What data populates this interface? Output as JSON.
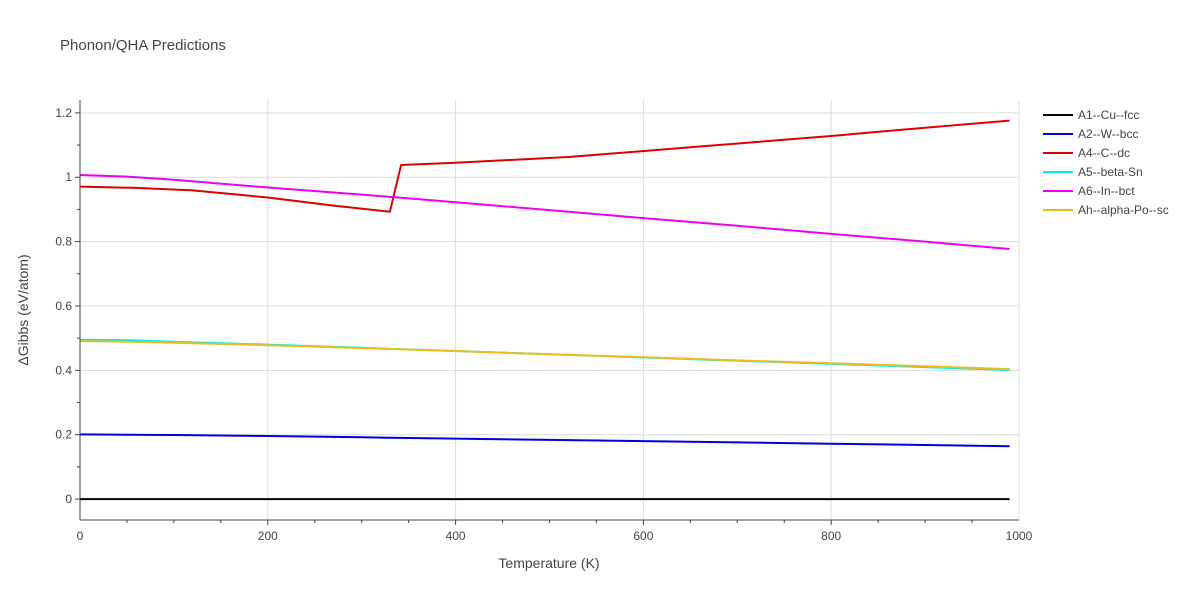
{
  "chart_data": {
    "type": "line",
    "title": "Phonon/QHA Predictions",
    "xlabel": "Temperature (K)",
    "ylabel": "ΔGibbs (eV/atom)",
    "xlim": [
      0,
      1000
    ],
    "ylim": [
      -0.065,
      1.24
    ],
    "xticks": [
      0,
      200,
      400,
      600,
      800,
      1000
    ],
    "xtick_labels": [
      "0",
      "200",
      "400",
      "600",
      "800",
      "1000"
    ],
    "yticks": [
      0,
      0.2,
      0.4,
      0.6,
      0.8,
      1,
      1.2
    ],
    "ytick_labels": [
      "0",
      "0.2",
      "0.4",
      "0.6",
      "0.8",
      "1",
      "1.2"
    ],
    "grid": true,
    "legend_position": "top-right",
    "series": [
      {
        "name": "A1--Cu--fcc",
        "color": "#000000",
        "x": [
          0,
          990
        ],
        "y": [
          0,
          0
        ]
      },
      {
        "name": "A2--W--bcc",
        "color": "#0000dd",
        "x": [
          0,
          100,
          200,
          300,
          400,
          500,
          600,
          700,
          800,
          900,
          990
        ],
        "y": [
          0.201,
          0.199,
          0.196,
          0.192,
          0.188,
          0.184,
          0.18,
          0.176,
          0.172,
          0.168,
          0.164
        ]
      },
      {
        "name": "A4--C--dc",
        "color": "#dd0000",
        "x": [
          0,
          60,
          120,
          200,
          270,
          330,
          342,
          400,
          520,
          650,
          800,
          900,
          990
        ],
        "y": [
          0.971,
          0.967,
          0.959,
          0.937,
          0.912,
          0.893,
          1.038,
          1.045,
          1.063,
          1.093,
          1.128,
          1.154,
          1.176
        ]
      },
      {
        "name": "A5--beta-Sn",
        "color": "#00eeee",
        "x": [
          0,
          50,
          100,
          200,
          300,
          400,
          500,
          600,
          700,
          800,
          900,
          990
        ],
        "y": [
          0.495,
          0.494,
          0.489,
          0.48,
          0.47,
          0.46,
          0.45,
          0.44,
          0.43,
          0.42,
          0.41,
          0.401
        ]
      },
      {
        "name": "A6--In--bct",
        "color": "#ee00ee",
        "x": [
          0,
          50,
          100,
          200,
          300,
          400,
          500,
          600,
          700,
          800,
          900,
          990
        ],
        "y": [
          1.007,
          1.002,
          0.992,
          0.968,
          0.946,
          0.922,
          0.898,
          0.873,
          0.849,
          0.824,
          0.8,
          0.777
        ]
      },
      {
        "name": "Ah--alpha-Po--sc",
        "color": "#eebb22",
        "x": [
          0,
          50,
          100,
          200,
          300,
          400,
          500,
          600,
          700,
          800,
          900,
          990
        ],
        "y": [
          0.491,
          0.489,
          0.486,
          0.478,
          0.469,
          0.46,
          0.45,
          0.441,
          0.431,
          0.422,
          0.413,
          0.404
        ]
      }
    ]
  }
}
